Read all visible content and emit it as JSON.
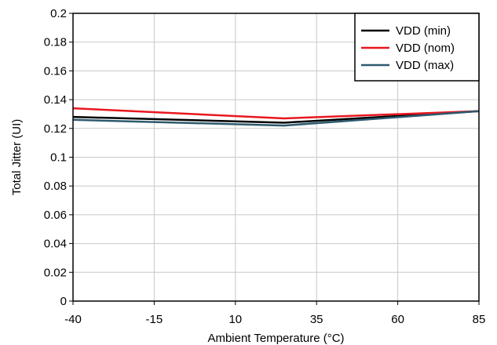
{
  "chart_data": {
    "type": "line",
    "title": "",
    "xlabel": "Ambient Temperature (°C)",
    "ylabel": "Total Jitter (UI)",
    "x": [
      -40,
      25,
      85
    ],
    "xlim": [
      -40,
      85
    ],
    "ylim": [
      0,
      0.2
    ],
    "xticks": [
      -40,
      -15,
      10,
      35,
      60,
      85
    ],
    "xtick_labels": [
      "-40",
      "-15",
      "10",
      "35",
      "60",
      "85"
    ],
    "yticks": [
      0,
      0.02,
      0.04,
      0.06,
      0.08,
      0.1,
      0.12,
      0.14,
      0.16,
      0.18,
      0.2
    ],
    "ytick_labels": [
      "0",
      "0.02",
      "0.04",
      "0.06",
      "0.08",
      "0.1",
      "0.12",
      "0.14",
      "0.16",
      "0.18",
      "0.2"
    ],
    "grid": true,
    "legend_position": "top-right",
    "series": [
      {
        "name": "VDD (min)",
        "color": "#000000",
        "values": [
          0.128,
          0.124,
          0.132
        ]
      },
      {
        "name": "VDD (nom)",
        "color": "#e8171f",
        "values": [
          0.134,
          0.127,
          0.132
        ]
      },
      {
        "name": "VDD (max)",
        "color": "#2d5a6e",
        "values": [
          0.126,
          0.122,
          0.132
        ]
      }
    ]
  }
}
